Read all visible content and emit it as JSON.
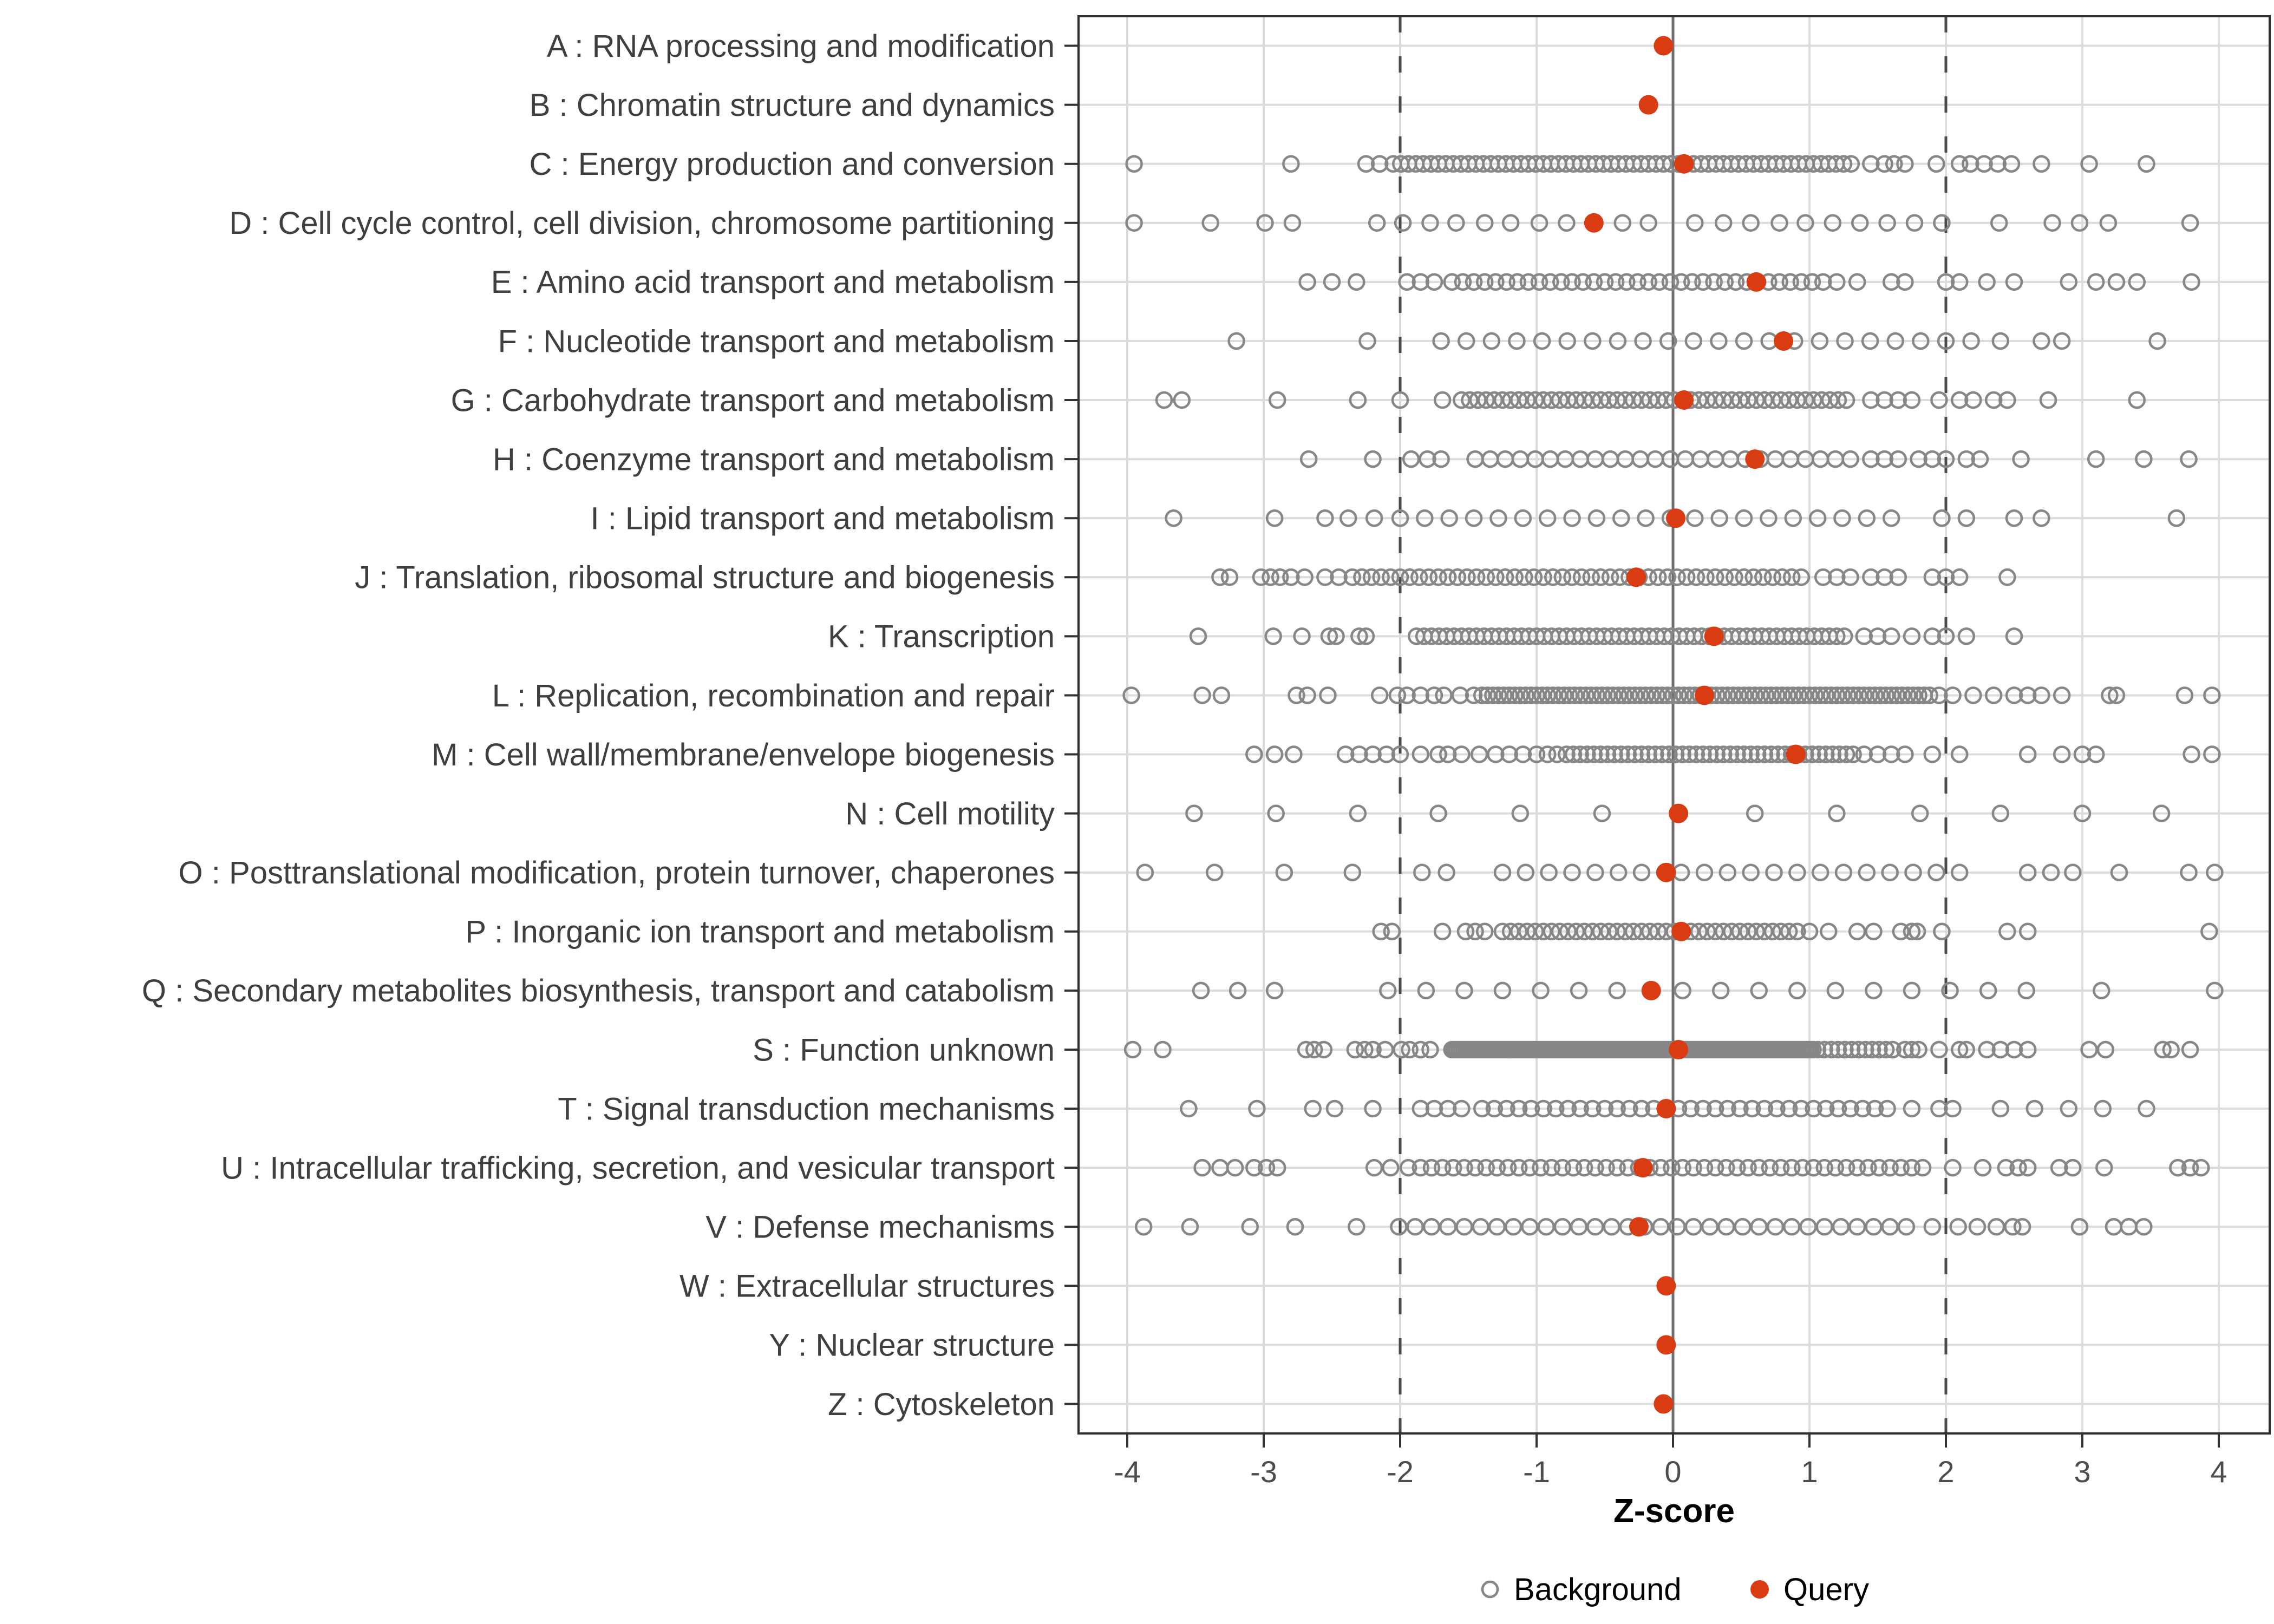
{
  "chart_data": {
    "type": "scatter",
    "title": "",
    "xlabel": "Z-score",
    "x_ticks": [
      -4,
      -3,
      -2,
      -1,
      0,
      1,
      2,
      3,
      4
    ],
    "xlim": [
      -4.37,
      4.37
    ],
    "grid": "major-x-and-row-lines",
    "reference_lines": {
      "solid_at": 0,
      "dashed_at": [
        -2,
        2
      ]
    },
    "legend": {
      "position": "bottom-center",
      "items": [
        {
          "label": "Background",
          "marker": "open-circle"
        },
        {
          "label": "Query",
          "marker": "filled-circle"
        }
      ]
    },
    "colors": {
      "query": "#D93B12",
      "background_stroke": "#878787",
      "grid": "#DCDCDC",
      "zero_line": "#6E6E6E",
      "dashed_line": "#4A4A4A",
      "panel_border": "#2E2E2E",
      "tick_mark": "#333333",
      "label_text": "#3F3F3F",
      "tick_text": "#4D4D4D",
      "title_text": "#000000"
    },
    "categories": [
      {
        "label": "A : RNA processing and modification",
        "query": -0.07,
        "bg_runs": [],
        "bg": []
      },
      {
        "label": "B : Chromatin structure and dynamics",
        "query": -0.18,
        "bg_runs": [],
        "bg": []
      },
      {
        "label": "C : Energy production and conversion",
        "query": 0.08,
        "bg_runs": [
          [
            -2.05,
            1.35,
            0.055
          ]
        ],
        "bg": [
          -3.95,
          -2.8,
          -2.25,
          -2.15,
          1.45,
          1.55,
          1.62,
          1.7,
          1.93,
          2.1,
          2.18,
          2.28,
          2.38,
          2.48,
          2.7,
          3.05,
          3.47
        ]
      },
      {
        "label": "D : Cell cycle control, cell division, chromosome partitioning",
        "query": -0.58,
        "bg_runs": [],
        "bg": [
          -3.95,
          -3.39,
          -2.99,
          -2.79,
          -2.17,
          -1.98,
          -1.78,
          -1.59,
          -1.38,
          -1.19,
          -0.98,
          -0.78,
          -0.37,
          -0.18,
          0.16,
          0.37,
          0.57,
          0.78,
          0.97,
          1.17,
          1.37,
          1.57,
          1.77,
          1.97,
          2.39,
          2.78,
          2.98,
          3.19,
          3.79
        ]
      },
      {
        "label": "E : Amino acid transport and metabolism",
        "query": 0.61,
        "bg_runs": [
          [
            -1.62,
            1.02,
            0.08
          ]
        ],
        "bg": [
          -2.68,
          -2.5,
          -2.32,
          -1.95,
          -1.85,
          -1.75,
          1.1,
          1.2,
          1.35,
          1.6,
          1.7,
          2.0,
          2.1,
          2.3,
          2.5,
          2.9,
          3.1,
          3.25,
          3.4,
          3.8
        ]
      },
      {
        "label": "F : Nucleotide transport and metabolism",
        "query": 0.81,
        "bg_runs": [
          [
            -1.7,
            2.2,
            0.185
          ]
        ],
        "bg": [
          -3.2,
          -2.24,
          2.4,
          2.7,
          2.85,
          3.55
        ]
      },
      {
        "label": "G : Carbohydrate transport and metabolism",
        "query": 0.08,
        "bg_runs": [
          [
            -1.55,
            1.3,
            0.06
          ]
        ],
        "bg": [
          -3.73,
          -3.6,
          -2.9,
          -2.31,
          -2.0,
          -1.69,
          1.45,
          1.55,
          1.65,
          1.75,
          1.95,
          2.1,
          2.2,
          2.35,
          2.45,
          2.75,
          3.4
        ]
      },
      {
        "label": "H : Coenzyme transport and metabolism",
        "query": 0.6,
        "bg_runs": [
          [
            -1.45,
            1.32,
            0.11
          ]
        ],
        "bg": [
          -2.67,
          -2.2,
          -1.92,
          -1.8,
          -1.7,
          1.45,
          1.55,
          1.65,
          1.8,
          1.9,
          2.0,
          2.15,
          2.25,
          2.55,
          3.1,
          3.45,
          3.78
        ]
      },
      {
        "label": "I : Lipid transport and metabolism",
        "query": 0.02,
        "bg_runs": [
          [
            -1.82,
            1.6,
            0.18
          ]
        ],
        "bg": [
          -3.66,
          -2.92,
          -2.55,
          -2.38,
          -2.19,
          -2.0,
          1.97,
          2.15,
          2.5,
          2.7,
          3.69
        ]
      },
      {
        "label": "J : Translation, ribosomal structure and biogenesis",
        "query": -0.27,
        "bg_runs": [
          [
            -2.35,
            1.0,
            0.07
          ]
        ],
        "bg": [
          -3.32,
          -3.25,
          -3.02,
          -2.95,
          -2.88,
          -2.8,
          -2.7,
          -2.55,
          -2.45,
          1.1,
          1.2,
          1.3,
          1.45,
          1.55,
          1.65,
          1.9,
          2.0,
          2.1,
          2.45
        ]
      },
      {
        "label": "K : Transcription",
        "query": 0.3,
        "bg_runs": [
          [
            -1.88,
            1.3,
            0.055
          ]
        ],
        "bg": [
          -3.48,
          -2.93,
          -2.72,
          -2.52,
          -2.47,
          -2.3,
          -2.25,
          1.4,
          1.5,
          1.6,
          1.75,
          1.9,
          2.0,
          2.15,
          2.5
        ]
      },
      {
        "label": "L : Replication, recombination and repair",
        "query": 0.23,
        "bg_runs": [
          [
            -1.4,
            1.88,
            0.04
          ]
        ],
        "bg": [
          -3.97,
          -3.45,
          -3.31,
          -2.76,
          -2.68,
          -2.53,
          -2.15,
          -2.02,
          -1.95,
          -1.85,
          -1.75,
          -1.68,
          -1.56,
          -1.46,
          1.95,
          2.05,
          2.2,
          2.35,
          2.5,
          2.6,
          2.7,
          2.85,
          3.2,
          3.25,
          3.75,
          3.95
        ]
      },
      {
        "label": "M : Cell wall/membrane/envelope biogenesis",
        "query": 0.9,
        "bg_runs": [
          [
            -0.78,
            1.32,
            0.05
          ]
        ],
        "bg": [
          -3.07,
          -2.92,
          -2.78,
          -2.4,
          -2.3,
          -2.2,
          -2.1,
          -2.0,
          -1.85,
          -1.72,
          -1.65,
          -1.55,
          -1.42,
          -1.3,
          -1.2,
          -1.1,
          -1.0,
          -0.92,
          -0.85,
          1.4,
          1.5,
          1.6,
          1.7,
          1.9,
          2.1,
          2.6,
          2.85,
          3.0,
          3.1,
          3.8,
          3.95
        ]
      },
      {
        "label": "N : Cell motility",
        "query": 0.04,
        "bg_runs": [],
        "bg": [
          -3.51,
          -2.91,
          -2.31,
          -1.72,
          -1.12,
          -0.52,
          0.6,
          1.2,
          1.81,
          2.4,
          3.0,
          3.58
        ]
      },
      {
        "label": "O : Posttranslational modification, protein turnover, chaperones",
        "query": -0.05,
        "bg_runs": [
          [
            -1.25,
            -0.05,
            0.17
          ],
          [
            0.06,
            1.98,
            0.17
          ]
        ],
        "bg": [
          -3.87,
          -3.36,
          -2.85,
          -2.35,
          -1.84,
          -1.66,
          2.1,
          2.6,
          2.77,
          2.93,
          3.27,
          3.78,
          3.97
        ]
      },
      {
        "label": "P : Inorganic ion transport and metabolism",
        "query": 0.06,
        "bg_runs": [
          [
            -1.25,
            0.92,
            0.06
          ]
        ],
        "bg": [
          -2.14,
          -2.06,
          -1.69,
          -1.52,
          -1.45,
          -1.38,
          1.0,
          1.14,
          1.35,
          1.47,
          1.67,
          1.75,
          1.79,
          1.97,
          2.45,
          2.6,
          3.93
        ]
      },
      {
        "label": "Q : Secondary metabolites biosynthesis, transport and catabolism",
        "query": -0.16,
        "bg_runs": [
          [
            -2.09,
            -0.41,
            0.28
          ],
          [
            0.07,
            2.59,
            0.28
          ]
        ],
        "bg": [
          -3.46,
          -3.19,
          -2.92,
          3.14,
          3.97
        ]
      },
      {
        "label": "S : Function unknown",
        "query": 0.04,
        "bg_runs": [
          [
            -1.62,
            1.03,
            0.018
          ],
          [
            1.06,
            1.62,
            0.05
          ]
        ],
        "bg": [
          -3.96,
          -3.74,
          -2.69,
          -2.63,
          -2.56,
          -2.33,
          -2.26,
          -2.2,
          -2.11,
          -1.99,
          -1.93,
          -1.85,
          -1.78,
          1.7,
          1.75,
          1.8,
          1.95,
          2.1,
          2.15,
          2.3,
          2.4,
          2.5,
          2.6,
          3.05,
          3.17,
          3.59,
          3.65,
          3.79
        ]
      },
      {
        "label": "T : Signal transduction mechanisms",
        "query": -0.05,
        "bg_runs": [
          [
            -1.4,
            1.57,
            0.09
          ]
        ],
        "bg": [
          -3.55,
          -3.05,
          -2.64,
          -2.48,
          -2.2,
          -1.85,
          -1.75,
          -1.65,
          -1.55,
          1.75,
          1.95,
          2.05,
          2.4,
          2.65,
          2.9,
          3.15,
          3.47
        ]
      },
      {
        "label": "U : Intracellular trafficking, secretion, and vesicular transport",
        "query": -0.22,
        "bg_runs": [
          [
            -1.85,
            1.84,
            0.08
          ]
        ],
        "bg": [
          -3.45,
          -3.32,
          -3.21,
          -3.07,
          -2.98,
          -2.9,
          -2.19,
          -2.07,
          -1.94,
          2.05,
          2.27,
          2.44,
          2.53,
          2.6,
          2.83,
          2.93,
          3.16,
          3.7,
          3.79,
          3.87
        ]
      },
      {
        "label": "V : Defense mechanisms",
        "query": -0.25,
        "bg_runs": [
          [
            -2.01,
            1.73,
            0.12
          ]
        ],
        "bg": [
          -3.88,
          -3.54,
          -3.1,
          -2.77,
          -2.32,
          1.9,
          2.09,
          2.23,
          2.37,
          2.49,
          2.56,
          2.98,
          3.23,
          3.34,
          3.45
        ]
      },
      {
        "label": "W : Extracellular structures",
        "query": -0.05,
        "bg_runs": [],
        "bg": []
      },
      {
        "label": "Y : Nuclear structure",
        "query": -0.05,
        "bg_runs": [],
        "bg": []
      },
      {
        "label": "Z : Cytoskeleton",
        "query": -0.07,
        "bg_runs": [],
        "bg": []
      }
    ]
  }
}
